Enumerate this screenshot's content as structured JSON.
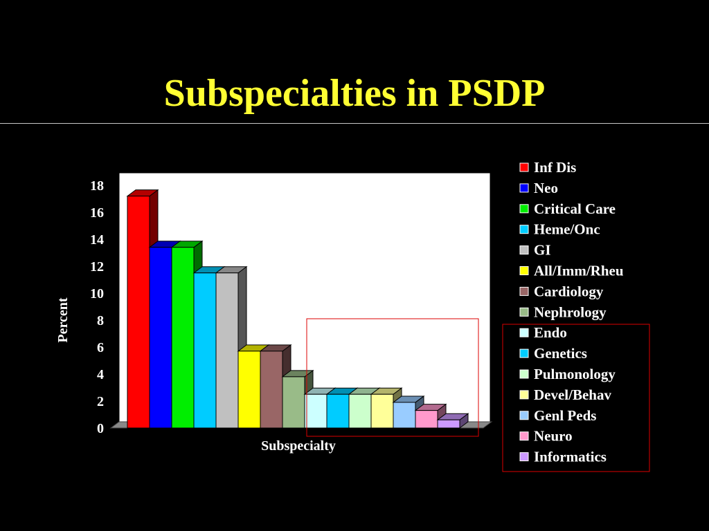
{
  "slide": {
    "title": "Subspecialties in PSDP"
  },
  "chart_data": {
    "type": "bar",
    "title": "Subspecialties in PSDP",
    "xlabel": "Subspecialty",
    "ylabel": "Percent",
    "ylim": [
      0,
      18
    ],
    "yticks": [
      0,
      2,
      4,
      6,
      8,
      10,
      12,
      14,
      16,
      18
    ],
    "grid": false,
    "legend_position": "right",
    "series": [
      {
        "name": "Inf Dis",
        "value": 17.2,
        "color": "#ff0000"
      },
      {
        "name": "Neo",
        "value": 13.4,
        "color": "#0000ff"
      },
      {
        "name": "Critical Care",
        "value": 13.4,
        "color": "#00ee00"
      },
      {
        "name": "Heme/Onc",
        "value": 11.5,
        "color": "#00ccff"
      },
      {
        "name": "GI",
        "value": 11.5,
        "color": "#c0c0c0"
      },
      {
        "name": "All/Imm/Rheu",
        "value": 5.7,
        "color": "#ffff00"
      },
      {
        "name": "Cardiology",
        "value": 5.7,
        "color": "#996666"
      },
      {
        "name": "Nephrology",
        "value": 3.8,
        "color": "#99bb88"
      },
      {
        "name": "Endo",
        "value": 2.5,
        "color": "#ccffff"
      },
      {
        "name": "Genetics",
        "value": 2.5,
        "color": "#00ccff"
      },
      {
        "name": "Pulmonology",
        "value": 2.5,
        "color": "#ccffcc"
      },
      {
        "name": "Devel/Behav",
        "value": 2.5,
        "color": "#ffff99"
      },
      {
        "name": "Genl Peds",
        "value": 1.9,
        "color": "#99ccff"
      },
      {
        "name": "Neuro",
        "value": 1.3,
        "color": "#ff99cc"
      },
      {
        "name": "Informatics",
        "value": 0.6,
        "color": "#cc99ff"
      }
    ]
  }
}
